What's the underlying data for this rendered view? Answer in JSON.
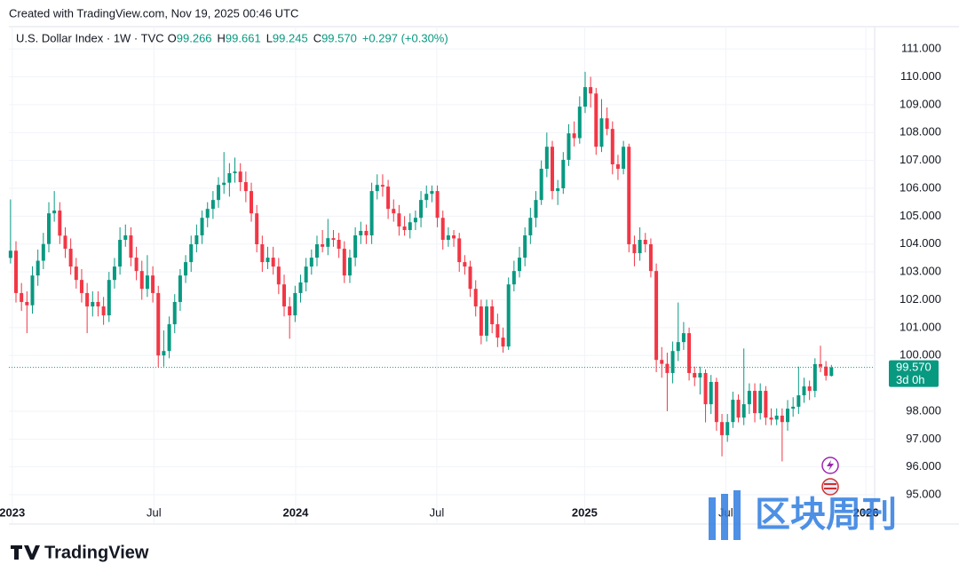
{
  "chart_data": {
    "type": "candlestick",
    "caption": "Created with TradingView.com, Nov 19, 2025 00:46 UTC",
    "title": "U.S. Dollar Index · 1W · TVC",
    "legend": [
      {
        "key": "O",
        "value": "99.266"
      },
      {
        "key": "H",
        "value": "99.661"
      },
      {
        "key": "L",
        "value": "99.245"
      },
      {
        "key": "C",
        "value": "99.570"
      }
    ],
    "change": "+0.297 (+0.30%)",
    "last_price_label": "99.570",
    "countdown": "3d 0h",
    "brand": "TradingView",
    "watermark": "区块周刊",
    "up_color": "#089981",
    "down_color": "#f23645",
    "grid": true,
    "open": [
      103.5,
      103.76,
      102.24,
      101.92,
      101.8,
      102.87,
      103.4,
      104.0,
      105.1,
      105.2,
      104.3,
      103.83,
      103.19,
      102.71,
      102.24,
      101.76,
      101.92,
      101.76,
      101.44,
      102.71,
      103.19,
      104.15,
      104.31,
      103.51,
      103.03,
      102.39,
      102.87,
      102.24,
      100.0,
      100.16,
      101.12,
      101.92,
      102.87,
      103.35,
      103.99,
      104.31,
      104.94,
      105.26,
      105.58,
      106.12,
      106.2,
      106.54,
      106.6,
      106.22,
      105.9,
      105.1,
      103.99,
      103.35,
      103.51,
      103.19,
      102.55,
      101.76,
      101.44,
      102.24,
      102.62,
      103.19,
      103.51,
      103.99,
      103.9,
      104.21,
      104.15,
      103.83,
      102.87,
      103.51,
      104.31,
      104.47,
      104.31,
      105.9,
      106.12,
      106.06,
      105.26,
      105.1,
      104.63,
      104.5,
      104.78,
      104.94,
      105.58,
      105.8,
      105.9,
      104.94,
      104.15,
      104.31,
      104.2,
      103.35,
      103.19,
      102.39,
      101.76,
      100.71,
      101.76,
      101.12,
      100.64,
      100.32,
      102.55,
      103.03,
      103.51,
      104.31,
      104.94,
      105.58,
      106.7,
      107.49,
      105.9,
      106.0,
      107.02,
      107.97,
      107.8,
      108.93,
      109.63,
      109.4,
      107.49,
      108.51,
      108.13,
      106.86,
      106.7,
      107.49,
      103.99,
      103.67,
      104.15,
      103.99,
      103.03,
      99.84,
      99.7,
      99.37,
      100.16,
      100.48,
      100.8,
      99.37,
      99.21,
      99.37,
      98.25,
      99.05,
      97.61,
      97.14,
      97.61,
      98.41,
      97.77,
      98.25,
      98.73,
      97.93,
      98.73,
      97.77,
      97.7,
      97.84,
      97.61,
      98.09,
      98.16,
      98.57,
      98.89,
      98.73,
      99.69,
      99.6,
      99.266
    ],
    "high": [
      105.6,
      104.1,
      102.6,
      102.3,
      103.2,
      103.8,
      104.4,
      105.5,
      105.9,
      105.5,
      104.6,
      104.2,
      103.5,
      103.1,
      102.6,
      102.3,
      102.3,
      102.1,
      103.0,
      103.5,
      104.6,
      104.7,
      104.6,
      103.9,
      103.4,
      103.6,
      103.2,
      102.5,
      100.9,
      101.4,
      102.2,
      103.1,
      103.6,
      104.3,
      104.7,
      105.2,
      105.5,
      105.9,
      106.4,
      107.3,
      106.9,
      107.1,
      106.9,
      106.6,
      106.2,
      105.4,
      104.3,
      103.9,
      103.9,
      103.5,
      102.9,
      102.1,
      102.5,
      102.9,
      103.5,
      103.8,
      104.3,
      104.5,
      104.9,
      104.5,
      104.4,
      104.1,
      103.8,
      104.6,
      104.8,
      104.7,
      106.2,
      106.5,
      106.5,
      106.3,
      105.6,
      105.4,
      105.0,
      105.1,
      105.2,
      105.9,
      106.1,
      106.1,
      106.1,
      105.2,
      104.6,
      104.5,
      104.4,
      103.6,
      103.4,
      102.7,
      102.0,
      102.0,
      102.0,
      101.5,
      101.0,
      102.8,
      103.4,
      103.9,
      104.6,
      105.3,
      105.9,
      107.0,
      108.0,
      107.7,
      106.3,
      107.3,
      108.3,
      108.4,
      109.3,
      110.18,
      110.0,
      109.6,
      109.2,
      108.9,
      108.4,
      107.2,
      107.7,
      107.6,
      104.3,
      104.6,
      104.4,
      104.2,
      103.3,
      100.3,
      100.1,
      100.5,
      101.9,
      101.2,
      101.0,
      99.6,
      99.6,
      99.5,
      99.3,
      99.2,
      97.9,
      97.9,
      98.7,
      98.6,
      100.25,
      99.0,
      99.0,
      99.0,
      98.9,
      98.1,
      98.1,
      98.1,
      98.4,
      98.5,
      99.6,
      99.2,
      99.1,
      99.9,
      100.35,
      99.8,
      99.661
    ],
    "low": [
      103.3,
      101.9,
      101.6,
      100.8,
      101.5,
      102.5,
      103.1,
      103.7,
      104.8,
      104.0,
      103.5,
      102.9,
      102.4,
      101.9,
      100.8,
      101.4,
      101.4,
      101.1,
      101.2,
      102.4,
      102.9,
      103.9,
      103.2,
      102.7,
      102.0,
      102.1,
      101.9,
      99.58,
      99.6,
      99.9,
      100.8,
      101.6,
      102.6,
      103.0,
      103.7,
      104.0,
      104.6,
      104.9,
      105.3,
      105.8,
      105.7,
      106.2,
      105.9,
      105.5,
      104.8,
      103.7,
      103.0,
      103.1,
      102.9,
      102.2,
      101.4,
      100.6,
      101.2,
      101.9,
      102.3,
      102.9,
      103.2,
      103.7,
      103.6,
      103.9,
      103.5,
      102.6,
      102.6,
      103.2,
      104.0,
      104.0,
      104.0,
      105.6,
      105.7,
      104.9,
      104.8,
      104.3,
      104.3,
      104.2,
      104.5,
      104.6,
      105.3,
      105.5,
      104.6,
      103.8,
      103.9,
      103.9,
      103.0,
      102.9,
      102.1,
      101.4,
      100.4,
      100.5,
      100.8,
      100.3,
      100.1,
      100.2,
      102.3,
      102.8,
      103.2,
      104.0,
      104.6,
      105.4,
      106.4,
      105.6,
      105.4,
      105.8,
      106.8,
      107.5,
      107.6,
      108.7,
      108.9,
      107.2,
      107.3,
      107.9,
      106.5,
      106.3,
      106.5,
      103.7,
      103.2,
      103.4,
      103.7,
      102.8,
      99.4,
      99.2,
      98.0,
      99.0,
      99.8,
      100.2,
      99.1,
      98.9,
      98.6,
      97.6,
      97.9,
      97.3,
      96.38,
      96.9,
      97.4,
      97.6,
      97.5,
      97.9,
      97.6,
      97.7,
      97.5,
      97.5,
      97.5,
      96.2,
      97.3,
      97.8,
      97.9,
      98.3,
      98.4,
      98.5,
      99.4,
      99.1,
      99.245
    ],
    "close": [
      103.76,
      102.24,
      101.92,
      101.8,
      102.87,
      103.4,
      104.0,
      105.1,
      105.2,
      104.3,
      103.83,
      103.19,
      102.71,
      102.24,
      101.76,
      101.92,
      101.76,
      101.44,
      102.71,
      103.19,
      104.15,
      104.31,
      103.51,
      103.03,
      102.39,
      102.87,
      102.24,
      100.0,
      100.16,
      101.12,
      101.92,
      102.87,
      103.35,
      103.99,
      104.31,
      104.94,
      105.26,
      105.58,
      106.12,
      106.2,
      106.54,
      106.6,
      106.22,
      105.9,
      105.1,
      103.99,
      103.35,
      103.51,
      103.19,
      102.55,
      101.76,
      101.44,
      102.24,
      102.62,
      103.19,
      103.51,
      103.99,
      103.9,
      104.21,
      104.15,
      103.83,
      102.87,
      103.51,
      104.31,
      104.47,
      104.31,
      105.9,
      106.12,
      106.06,
      105.26,
      105.1,
      104.63,
      104.5,
      104.78,
      104.94,
      105.58,
      105.8,
      105.9,
      104.94,
      104.15,
      104.31,
      104.2,
      103.35,
      103.19,
      102.39,
      101.76,
      100.71,
      101.76,
      101.12,
      100.64,
      100.32,
      102.55,
      103.03,
      103.51,
      104.31,
      104.94,
      105.58,
      106.7,
      107.49,
      105.9,
      106.0,
      107.02,
      107.97,
      107.8,
      108.93,
      109.63,
      109.4,
      107.49,
      108.51,
      108.13,
      106.86,
      106.7,
      107.49,
      103.99,
      103.67,
      104.15,
      103.99,
      103.03,
      99.84,
      99.7,
      99.37,
      100.16,
      100.48,
      100.8,
      99.37,
      99.21,
      99.37,
      98.25,
      99.05,
      97.61,
      97.14,
      97.61,
      98.41,
      97.77,
      98.25,
      98.73,
      97.93,
      98.73,
      97.77,
      97.7,
      97.84,
      97.61,
      98.09,
      98.16,
      98.57,
      98.89,
      98.73,
      99.69,
      99.6,
      99.27,
      99.57
    ],
    "xlim": [
      -0.3,
      157.9
    ],
    "xticks": [
      {
        "value": 0.3,
        "label": "2023"
      },
      {
        "value": 26.2,
        "label": "Jul"
      },
      {
        "value": 52.1,
        "label": "2024"
      },
      {
        "value": 77.9,
        "label": "Jul"
      },
      {
        "value": 104.9,
        "label": "2025"
      },
      {
        "value": 130.7,
        "label": "Jul"
      },
      {
        "value": 156.3,
        "label": "2026"
      }
    ],
    "ylim": [
      93.95,
      111.8
    ],
    "yticks": [
      {
        "value": 95,
        "label": "95.000"
      },
      {
        "value": 96,
        "label": "96.000"
      },
      {
        "value": 97,
        "label": "97.000"
      },
      {
        "value": 98,
        "label": "98.000"
      },
      {
        "value": 100,
        "label": "100.000"
      },
      {
        "value": 101,
        "label": "101.000"
      },
      {
        "value": 102,
        "label": "102.000"
      },
      {
        "value": 103,
        "label": "103.000"
      },
      {
        "value": 104,
        "label": "104.000"
      },
      {
        "value": 105,
        "label": "105.000"
      },
      {
        "value": 106,
        "label": "106.000"
      },
      {
        "value": 107,
        "label": "107.000"
      },
      {
        "value": 108,
        "label": "108.000"
      },
      {
        "value": 109,
        "label": "109.000"
      },
      {
        "value": 110,
        "label": "110.000"
      },
      {
        "value": 111,
        "label": "111.000"
      }
    ]
  }
}
